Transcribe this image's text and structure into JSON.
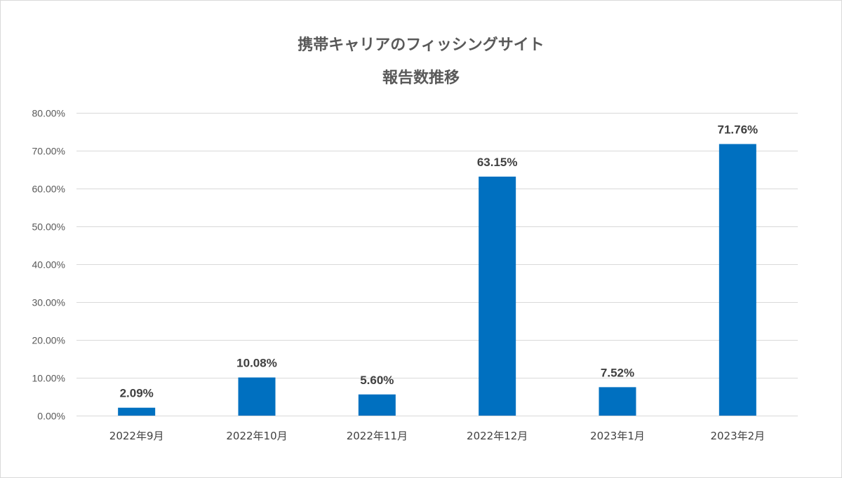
{
  "chart_data": {
    "type": "bar",
    "title_lines": [
      "携帯キャリアのフィッシングサイト",
      "報告数推移"
    ],
    "xlabel": "",
    "ylabel": "",
    "categories": [
      "2022年9月",
      "2022年10月",
      "2022年11月",
      "2022年12月",
      "2023年1月",
      "2023年2月"
    ],
    "values": [
      2.09,
      10.08,
      5.6,
      63.15,
      7.52,
      71.76
    ],
    "data_labels": [
      "2.09%",
      "10.08%",
      "5.60%",
      "63.15%",
      "7.52%",
      "71.76%"
    ],
    "ylim": [
      0,
      80
    ],
    "yticks": [
      0,
      10,
      20,
      30,
      40,
      50,
      60,
      70,
      80
    ],
    "ytick_labels": [
      "0.00%",
      "10.00%",
      "20.00%",
      "30.00%",
      "40.00%",
      "50.00%",
      "60.00%",
      "70.00%",
      "80.00%"
    ],
    "grid": true,
    "legend": "none",
    "bar_color": "#0070C0"
  }
}
